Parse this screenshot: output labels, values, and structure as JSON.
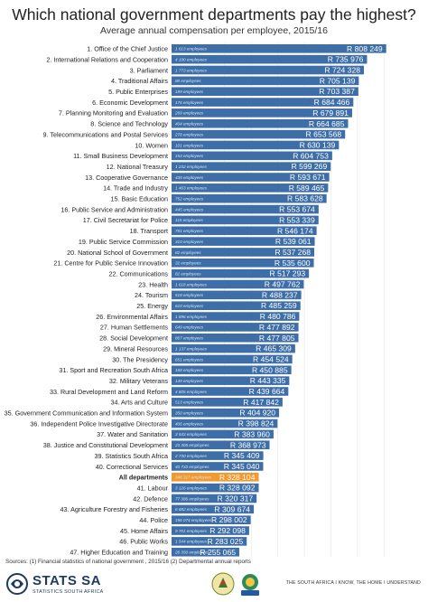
{
  "title": "Which national government departments pay the highest?",
  "subtitle": "Average annual compensation per employee, 2015/16",
  "sources": "Sources: (1) Financial statistics of national government , 2015/16     (2) Departmental annual reports",
  "logo": {
    "name": "STATS SA",
    "sub": "STATISTICS SOUTH AFRICA"
  },
  "tagline": "THE SOUTH AFRICA I KNOW, THE HOME I UNDERSTAND",
  "colors": {
    "bar": "#3d6ea8",
    "highlight": "#f39a2e",
    "label": "#222222",
    "highlight_label": "#f39a2e"
  },
  "icons": [
    "stats-sa-logo",
    "coat-of-arms-seal",
    "ndp-logo"
  ],
  "chart_data": {
    "type": "bar",
    "orientation": "horizontal",
    "grid": true,
    "categories": [
      "1. Office of the Chief Justice",
      "2. International Relations and Cooperation",
      "3. Parliament",
      "4. Traditional Affairs",
      "5. Public Enterprises",
      "6. Economic Development",
      "7. Planning Monitoring and Evaluation",
      "8. Science and Technology",
      "9. Telecommunications and Postal Services",
      "10. Women",
      "11. Small Business Development",
      "12. National Treasury",
      "13. Cooperative Governance",
      "14. Trade and Industry",
      "15. Basic Education",
      "16. Public Service and Administration",
      "17. Civil Secretariat for Police",
      "18. Transport",
      "19. Public Service Commission",
      "20. National School of Government",
      "21. Centre for Public Service Innovation",
      "22. Communications",
      "23. Health",
      "24. Tourism",
      "25. Energy",
      "26. Environmental Affairs",
      "27. Human Settlements",
      "28. Social Development",
      "29. Mineral Resources",
      "30. The Presidency",
      "31. Sport and Recreation South Africa",
      "32. Military Veterans",
      "33. Rural Development and Land Reform",
      "34. Arts and Culture",
      "35. Government Communication and Information System",
      "36. Independent Police Investigative Directorate",
      "37. Water and Sanitation",
      "38. Justice and Constitutional Development",
      "39. Statistics South Africa",
      "40. Correctional Services",
      "All departments",
      "41. Labour",
      "42. Defence",
      "43. Agriculture Forestry and Fisheries",
      "44. Police",
      "45. Home Affairs",
      "46. Public Works",
      "47. Higher Education and Training"
    ],
    "values": [
      808249,
      735976,
      724328,
      705139,
      703387,
      684466,
      679891,
      664685,
      653568,
      630139,
      604753,
      599269,
      593671,
      589465,
      583628,
      553674,
      553339,
      546174,
      539061,
      537268,
      535600,
      517293,
      497762,
      488237,
      485259,
      480786,
      477892,
      477805,
      465309,
      454524,
      450885,
      443335,
      439664,
      417842,
      404920,
      398824,
      383960,
      368973,
      345409,
      345040,
      328104,
      328092,
      320317,
      309674,
      298002,
      292098,
      283025,
      255065
    ],
    "value_labels": [
      "R 808 249",
      "R 735 976",
      "R 724 328",
      "R 705 139",
      "R 703 387",
      "R 684 466",
      "R 679 891",
      "R 664 685",
      "R 653 568",
      "R 630 139",
      "R 604 753",
      "R 599 269",
      "R 593 671",
      "R 589 465",
      "R 583 628",
      "R 553 674",
      "R 553 339",
      "R 546 174",
      "R 539 061",
      "R 537 268",
      "R 535 600",
      "R 517 293",
      "R 497 762",
      "R 488 237",
      "R 485 259",
      "R 480 786",
      "R 477 892",
      "R 477 805",
      "R 465 309",
      "R 454 524",
      "R 450 885",
      "R 443 335",
      "R 439 664",
      "R 417 842",
      "R 404 920",
      "R 398 824",
      "R 383 960",
      "R 368 973",
      "R 345 409",
      "R 345 040",
      "R 328 104",
      "R 328 092",
      "R 320 317",
      "R 309 674",
      "R 298 002",
      "R 292 098",
      "R 283 025",
      "R 255 065"
    ],
    "employees": [
      "1 613 employees",
      "4 190 employees",
      "1 773 employees",
      "80 employees",
      "199 employees",
      "176 employees",
      "269 employees",
      "404 employees",
      "278 employees",
      "101 employees",
      "154 employees",
      "1 232 employees",
      "435 employees",
      "1 463 employees",
      "752 employees",
      "445 employees",
      "115 employees",
      "781 employees",
      "310 employees",
      "82 employees",
      "32 employees",
      "82 employees",
      "1 618 employees",
      "518 employees",
      "610 employees",
      "1 896 employees",
      "649 employees",
      "867 employees",
      "1 137 employees",
      "651 employees",
      "168 employees",
      "149 employees",
      "4 805 employees",
      "513 employees",
      "350 employees",
      "406 employees",
      "3 543 employees",
      "23 305 employees",
      "2 730 employees",
      "40 733 employees",
      "348 317 employees",
      "3 126 employees",
      "77 386 employees",
      "6 682 employees",
      "196 074 employees",
      "9 701 employees",
      "1 544 employees",
      "26 350 employees"
    ],
    "highlight_index": 40,
    "xlim": [
      0,
      850000
    ]
  }
}
